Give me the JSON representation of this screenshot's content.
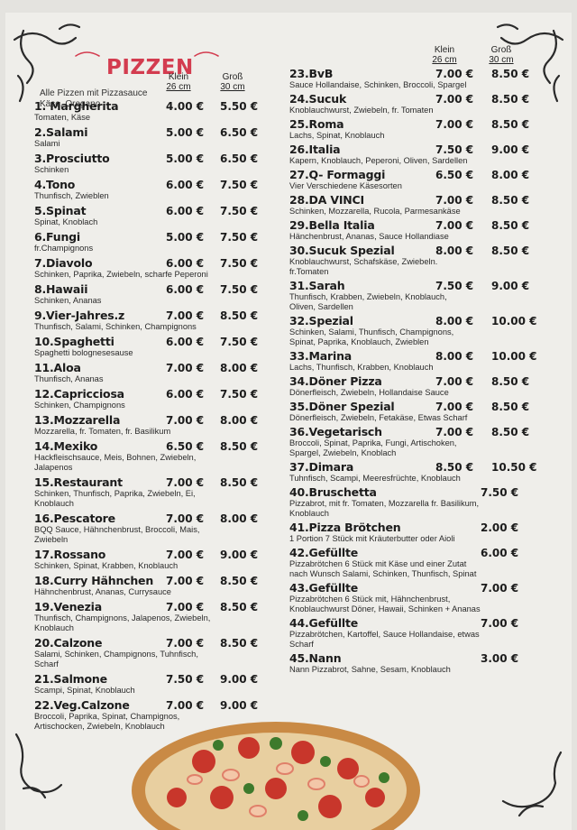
{
  "header": {
    "title": "PIZZEN",
    "note": "Alle Pizzen mit Pizzasauce Käse, Oregano"
  },
  "size_headers": {
    "left": {
      "small": "Klein",
      "small_size": "26 cm",
      "large": "Groß",
      "large_size": "30 cm"
    },
    "right": {
      "small": "Klein",
      "small_size": "26 cm",
      "large": "Groß",
      "large_size": "30 cm"
    }
  },
  "left_items": [
    {
      "name": "1. Margherita",
      "desc": "Tomaten, Käse",
      "small": "4.00 €",
      "large": "5.50 €"
    },
    {
      "name": "2.Salami",
      "desc": "Salami",
      "small": "5.00 €",
      "large": "6.50 €"
    },
    {
      "name": "3.Prosciutto",
      "desc": "Schinken",
      "small": "5.00 €",
      "large": "6.50 €"
    },
    {
      "name": "4.Tono",
      "desc": "Thunfisch, Zwieblen",
      "small": "6.00 €",
      "large": "7.50 €"
    },
    {
      "name": "5.Spinat",
      "desc": "Spinat, Knoblach",
      "small": "6.00 €",
      "large": "7.50 €"
    },
    {
      "name": "6.Fungi",
      "desc": "fr.Champignons",
      "small": "5.00 €",
      "large": "7.50 €"
    },
    {
      "name": "7.Diavolo",
      "desc": "Schinken, Paprika, Zwiebeln, scharfe Peperoni",
      "small": "6.00 €",
      "large": "7.50 €"
    },
    {
      "name": "8.Hawaii",
      "desc": "Schinken, Ananas",
      "small": "6.00 €",
      "large": "7.50 €"
    },
    {
      "name": "9.Vier-Jahres.z",
      "desc": "Thunfisch, Salami, Schinken, Champignons",
      "small": "7.00 €",
      "large": "8.50 €"
    },
    {
      "name": "10.Spaghetti",
      "desc": "Spaghetti bolognesesause",
      "small": "6.00 €",
      "large": "7.50 €"
    },
    {
      "name": "11.Aloa",
      "desc": "Thunfisch, Ananas",
      "small": "7.00 €",
      "large": "8.00 €"
    },
    {
      "name": "12.Capricciosa",
      "desc": "Schinken, Champignons",
      "small": "6.00 €",
      "large": "7.50 €"
    },
    {
      "name": "13.Mozzarella",
      "desc": "Mozzarella, fr. Tomaten, fr. Basilikum",
      "small": "7.00 €",
      "large": "8.00 €"
    },
    {
      "name": "14.Mexiko",
      "desc": "Hackfleischsauce, Meis, Bohnen, Zwiebeln, Jalapenos",
      "small": "6.50 €",
      "large": "8.50 €"
    },
    {
      "name": "15.Restaurant",
      "desc": "Schinken, Thunfisch, Paprika, Zwiebeln, Ei, Knoblauch",
      "small": "7.00 €",
      "large": "8.50 €"
    },
    {
      "name": "16.Pescatore",
      "desc": "BQQ Sauce, Hähnchenbrust, Broccoli, Mais, Zwiebeln",
      "small": "7.00 €",
      "large": "8.00 €"
    },
    {
      "name": "17.Rossano",
      "desc": "Schinken, Spinat, Krabben, Knoblauch",
      "small": "7.00 €",
      "large": "9.00 €"
    },
    {
      "name": "18.Curry Hähnchen",
      "desc": "Hähnchenbrust, Ananas, Currysauce",
      "small": "7.00 €",
      "large": "8.50 €"
    },
    {
      "name": "19.Venezia",
      "desc": "Thunfisch, Champignons, Jalapenos, Zwiebeln, Knoblauch",
      "small": "7.00 €",
      "large": "8.50 €"
    },
    {
      "name": "20.Calzone",
      "desc": "Salami, Schinken, Champignons, Tuhnfisch, Scharf",
      "small": "7.00 €",
      "large": "8.50 €"
    },
    {
      "name": "21.Salmone",
      "desc": "Scampi, Spinat, Knoblauch",
      "small": "7.50 €",
      "large": "9.00 €"
    },
    {
      "name": "22.Veg.Calzone",
      "desc": "Broccoli, Paprika, Spinat, Champignos, Artischocken, Zwiebeln, Knoblauch",
      "small": "7.00 €",
      "large": "9.00 €"
    }
  ],
  "right_items": [
    {
      "name": "23.BvB",
      "desc": "Sauce Hollandaise, Schinken, Broccoli, Spargel",
      "small": "7.00 €",
      "large": "8.50 €"
    },
    {
      "name": "24.Sucuk",
      "desc": "Knoblauchwurst, Zwiebeln, fr. Tomaten",
      "small": "7.00 €",
      "large": "8.50 €"
    },
    {
      "name": "25.Roma",
      "desc": "Lachs, Spinat, Knoblauch",
      "small": "7.00 €",
      "large": "8.50 €"
    },
    {
      "name": "26.Italia",
      "desc": "Kapern, Knoblauch, Peperoni, Oliven, Sardellen",
      "small": "7.50 €",
      "large": "9.00 €"
    },
    {
      "name": "27.Q- Formaggi",
      "desc": "Vier Verschiedene Käsesorten",
      "small": "6.50 €",
      "large": "8.00 €"
    },
    {
      "name": "28.DA VINCI",
      "desc": "Schinken, Mozzarella, Rucola, Parmesankäse",
      "small": "7.00 €",
      "large": "8.50 €"
    },
    {
      "name": "29.Bella Italia",
      "desc": "Hänchenbrust, Ananas, Sauce Hollandiase",
      "small": "7.00 €",
      "large": "8.50 €"
    },
    {
      "name": "30.Sucuk Spezial",
      "desc": "Knoblauchwurst, Schafskäse, Zwiebeln. fr.Tomaten",
      "small": "8.00 €",
      "large": "8.50 €"
    },
    {
      "name": "31.Sarah",
      "desc": "Thunfisch, Krabben, Zwiebeln, Knoblauch, Oliven, Sardellen",
      "small": "7.50 €",
      "large": "9.00 €"
    },
    {
      "name": "32.Spezial",
      "desc": "Schinken, Salami, Thunfisch, Champignons, Spinat, Paprika, Knoblauch, Zwieblen",
      "small": "8.00 €",
      "large": "10.00 €"
    },
    {
      "name": "33.Marina",
      "desc": "Lachs, Thunfisch, Krabben, Knoblauch",
      "small": "8.00 €",
      "large": "10.00 €"
    },
    {
      "name": "34.Döner Pizza",
      "desc": "Dönerfleisch, Zwiebeln, Hollandaise Sauce",
      "small": "7.00 €",
      "large": "8.50 €"
    },
    {
      "name": "35.Döner Spezial",
      "desc": "Dönerfleisch, Zwiebeln, Fetakäse, Etwas Scharf",
      "small": "7.00 €",
      "large": "8.50 €"
    },
    {
      "name": "36.Vegetarisch",
      "desc": "Broccoli, Spinat, Paprika, Fungi, Artischoken, Spargel, Zwiebeln, Knoblach",
      "small": "7.00 €",
      "large": "8.50 €"
    },
    {
      "name": "37.Dimara",
      "desc": "Tuhnfisch, Scampi, Meeresfrüchte, Knoblauch",
      "small": "8.50 €",
      "large": "10.50 €"
    },
    {
      "name": "40.Bruschetta",
      "desc": "Pizzabrot, mit fr. Tomaten, Mozzarella fr. Basilikum, Knoblauch",
      "price": "7.50 €"
    },
    {
      "name": "41.Pizza Brötchen",
      "desc": "1 Portion 7 Stück mit Kräuterbutter oder Aioli",
      "price": "2.00 €"
    },
    {
      "name": "42.Gefüllte",
      "desc": "Pizzabrötchen 6 Stück mit Käse und einer Zutat nach Wunsch Salami, Schinken, Thunfisch, Spinat",
      "price": "6.00 €"
    },
    {
      "name": "43.Gefüllte",
      "desc": "Pizzabrötchen 6 Stück mit, Hähnchenbrust, Knoblauchwurst Döner, Hawaii, Schinken + Ananas",
      "price": "7.00 €"
    },
    {
      "name": "44.Gefüllte",
      "desc": "Pizzabrötchen, Kartoffel, Sauce Hollandaise, etwas Scharf",
      "price": "7.00 €"
    },
    {
      "name": "45.Nann",
      "desc": "Nann Pizzabrot, Sahne, Sesam, Knoblauch",
      "price": "3.00 €"
    }
  ]
}
